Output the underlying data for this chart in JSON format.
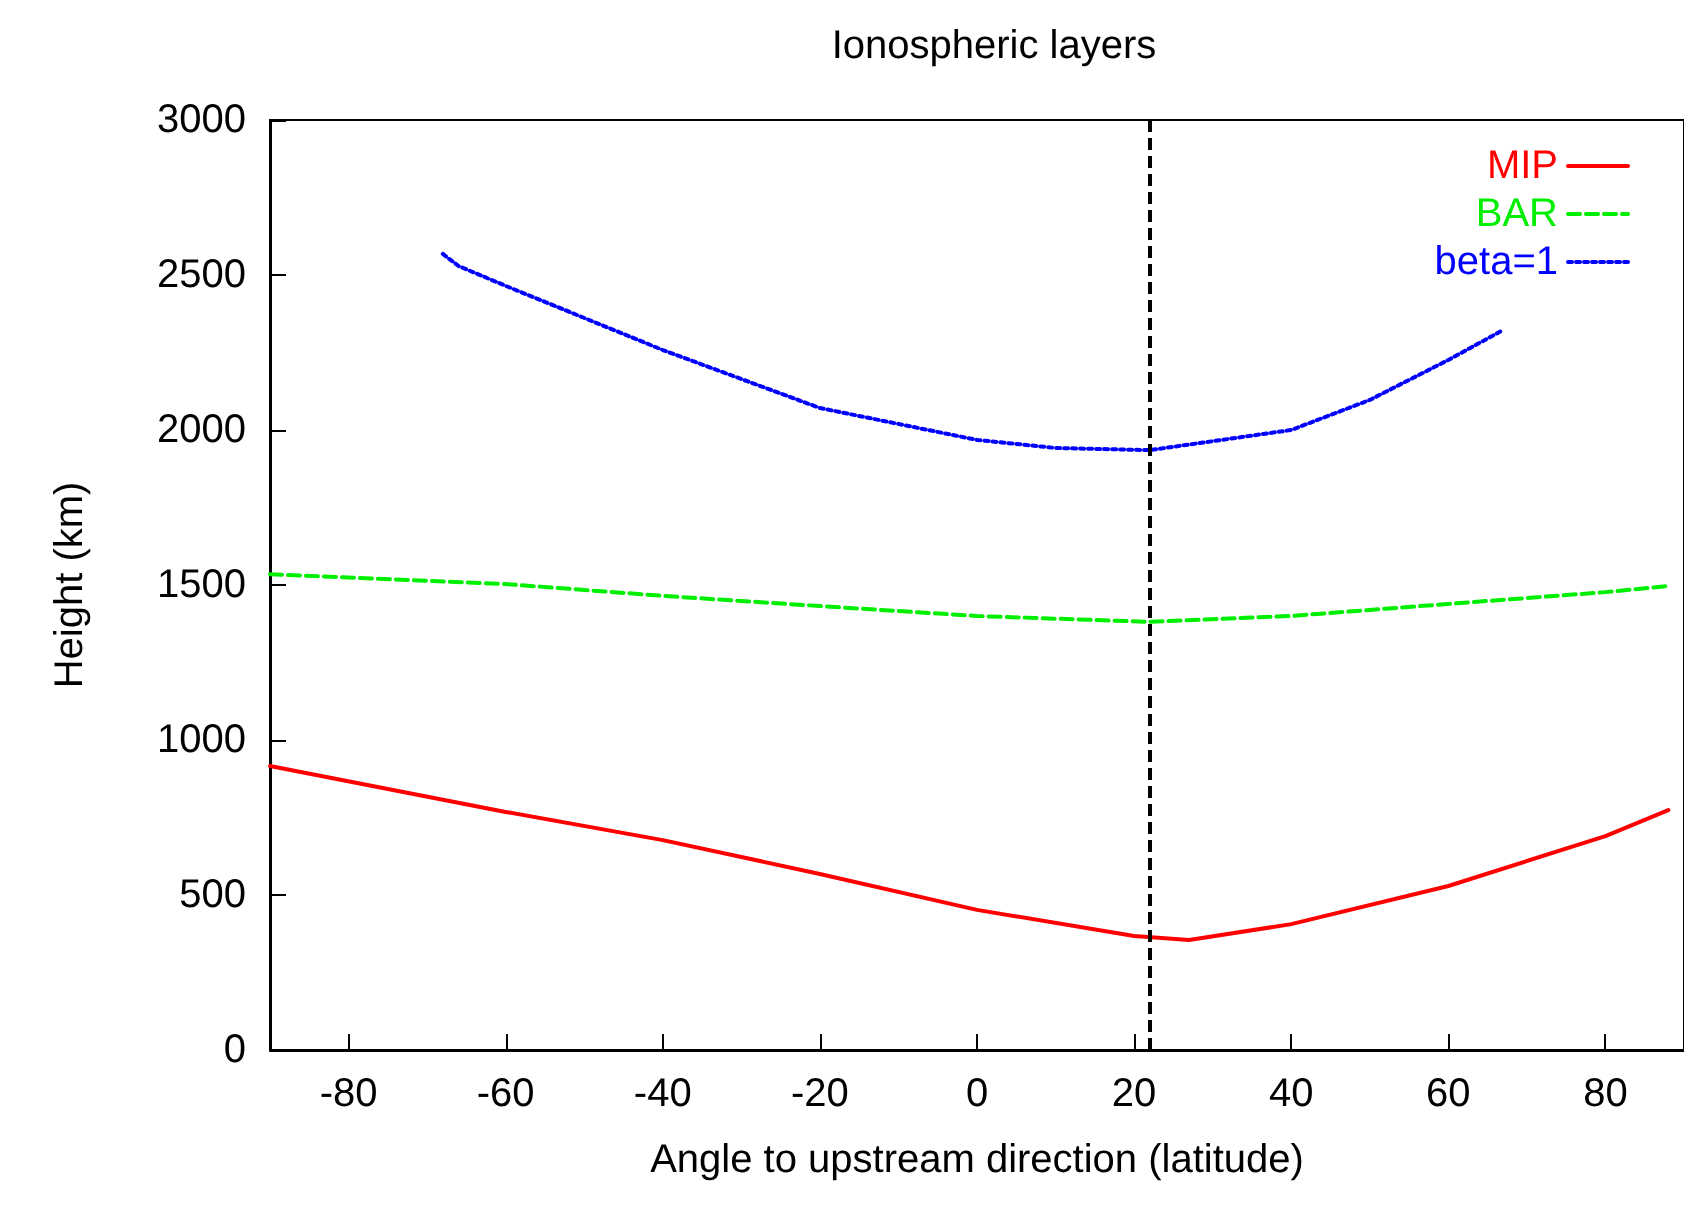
{
  "chart_data": {
    "type": "line",
    "title": "Ionospheric layers",
    "xlabel": "Angle to upstream direction (latitude)",
    "ylabel": "Height (km)",
    "xlim": [
      -90,
      90
    ],
    "xticks": [
      -80,
      -60,
      -40,
      -20,
      0,
      20,
      40,
      60,
      80
    ],
    "ylim": [
      0,
      3000
    ],
    "yticks": [
      0,
      500,
      1000,
      1500,
      2000,
      2500,
      3000
    ],
    "grid": false,
    "legend": "top right",
    "marker": "none",
    "series": [
      {
        "name": "MIP",
        "color": "#ff0000",
        "line_style": "solid",
        "x": [
          -90,
          -60,
          -40,
          -20,
          0,
          20,
          27,
          40,
          60,
          80,
          88
        ],
        "values": [
          916,
          768,
          677,
          568,
          452,
          368,
          355,
          406,
          529,
          690,
          774
        ]
      },
      {
        "name": "BAR",
        "color": "#00ee00",
        "line_style": "dashed",
        "x": [
          -90,
          -60,
          -40,
          -20,
          0,
          22,
          40,
          60,
          80,
          88
        ],
        "values": [
          1535,
          1503,
          1465,
          1432,
          1400,
          1381,
          1400,
          1439,
          1477,
          1497
        ]
      },
      {
        "name": "beta=1",
        "color": "#0000ff",
        "line_style": "dotted",
        "x": [
          -68,
          -66,
          -60,
          -40,
          -20,
          0,
          10,
          22,
          40,
          50,
          60,
          67
        ],
        "values": [
          2568,
          2529,
          2465,
          2258,
          2071,
          1968,
          1942,
          1935,
          2000,
          2097,
          2226,
          2323
        ]
      }
    ],
    "ref_lines": [
      {
        "axis": "x",
        "value": 22,
        "color": "#000000",
        "line_style": "dashed"
      }
    ]
  }
}
